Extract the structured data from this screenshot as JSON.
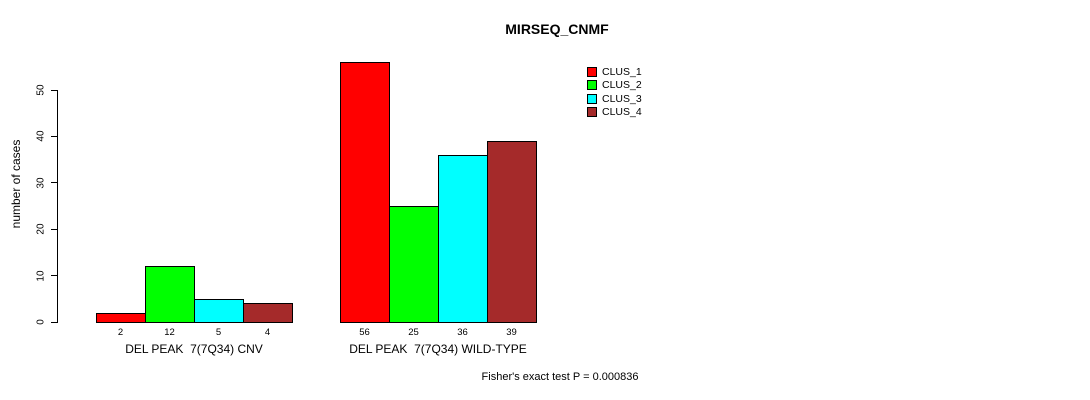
{
  "title": "MIRSEQ_CNMF",
  "footer": "Fisher's exact test P = 0.000836",
  "chart_data": {
    "type": "bar",
    "title": "MIRSEQ_CNMF",
    "ylabel": "number of cases",
    "xlabel": "",
    "ylim": [
      0,
      58
    ],
    "yticks": [
      0,
      10,
      20,
      30,
      40,
      50
    ],
    "grid": false,
    "legend_position": "top-right",
    "categories": [
      "DEL PEAK  7(7Q34) CNV",
      "DEL PEAK  7(7Q34) WILD-TYPE"
    ],
    "series": [
      {
        "name": "CLUS_1",
        "color": "#FF0000",
        "values": [
          2,
          56
        ]
      },
      {
        "name": "CLUS_2",
        "color": "#00FF00",
        "values": [
          12,
          25
        ]
      },
      {
        "name": "CLUS_3",
        "color": "#00FFFF",
        "values": [
          5,
          36
        ]
      },
      {
        "name": "CLUS_4",
        "color": "#A52A2A",
        "values": [
          4,
          39
        ]
      }
    ],
    "annotation": "Fisher's exact test P = 0.000836"
  }
}
